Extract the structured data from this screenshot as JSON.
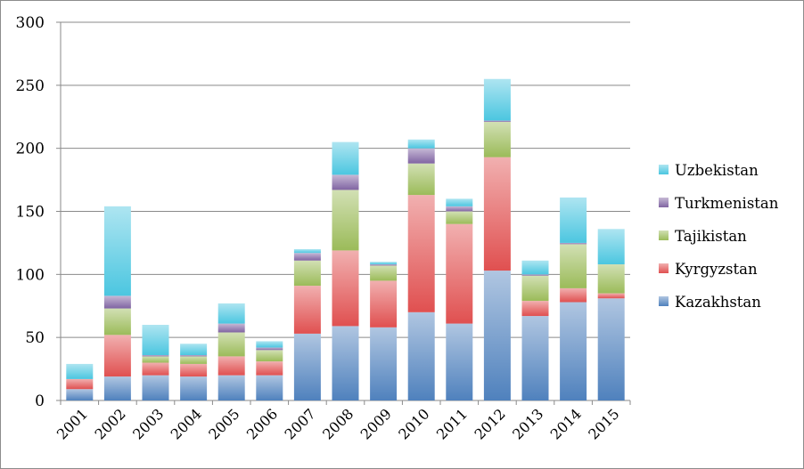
{
  "chart_data": {
    "type": "bar",
    "stacked": true,
    "title": "",
    "xlabel": "",
    "ylabel": "",
    "ylim": [
      0,
      300
    ],
    "yticks": [
      0,
      50,
      100,
      150,
      200,
      250,
      300
    ],
    "grid": true,
    "legend_position": "right",
    "categories": [
      "2001",
      "2002",
      "2003",
      "2004",
      "2005",
      "2006",
      "2007",
      "2008",
      "2009",
      "2010",
      "2011",
      "2012",
      "2013",
      "2014",
      "2015"
    ],
    "series": [
      {
        "name": "Kazakhstan",
        "color": "#4f81bd",
        "values": [
          9,
          19,
          20,
          19,
          20,
          20,
          53,
          59,
          58,
          70,
          61,
          103,
          67,
          78,
          81
        ]
      },
      {
        "name": "Kyrgyzstan",
        "color": "#e05050",
        "values": [
          8,
          33,
          10,
          10,
          15,
          11,
          38,
          60,
          37,
          93,
          79,
          90,
          12,
          11,
          4
        ]
      },
      {
        "name": "Tajikistan",
        "color": "#9bbb59",
        "values": [
          0,
          21,
          5,
          6,
          19,
          9,
          20,
          48,
          12,
          25,
          10,
          28,
          20,
          35,
          23
        ]
      },
      {
        "name": "Turkmenistan",
        "color": "#8064a2",
        "values": [
          0,
          10,
          1,
          1,
          7,
          2,
          6,
          12,
          1,
          12,
          4,
          1,
          1,
          1,
          0
        ]
      },
      {
        "name": "Uzbekistan",
        "color": "#4bc6e0",
        "values": [
          12,
          71,
          24,
          9,
          16,
          5,
          3,
          26,
          2,
          7,
          6,
          33,
          11,
          36,
          28
        ]
      }
    ]
  }
}
